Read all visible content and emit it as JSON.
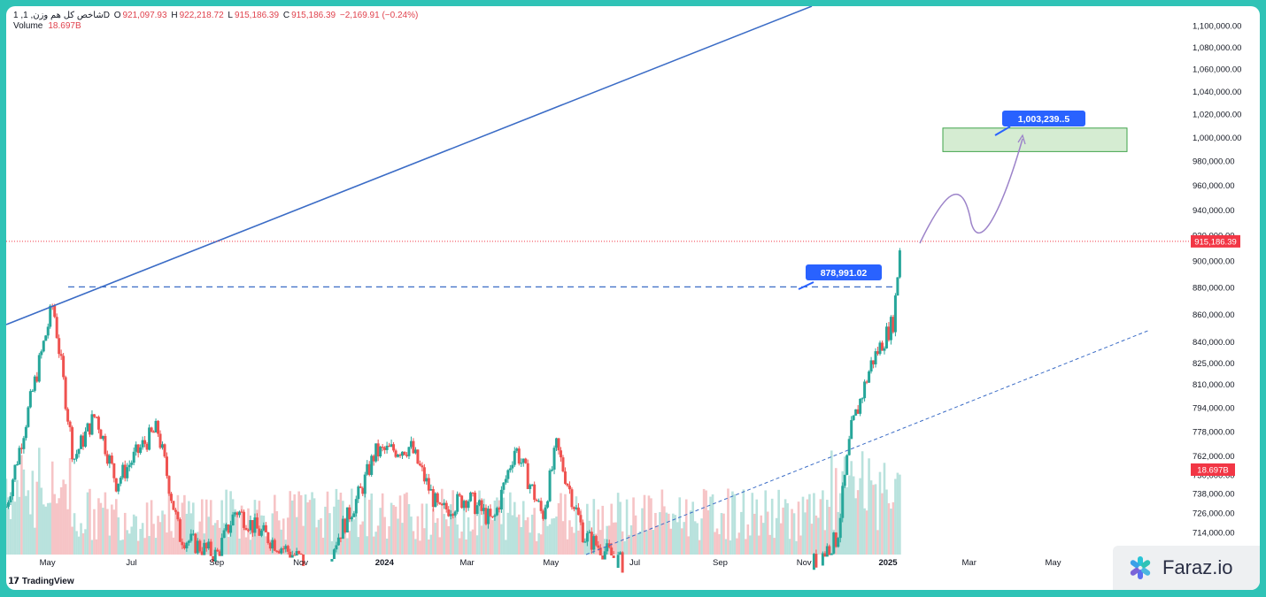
{
  "header": {
    "symbol": "1 ,شاخص کل هم وزن, 1D",
    "open_label": "O",
    "open": "921,097.93",
    "high_label": "H",
    "high": "922,218.72",
    "low_label": "L",
    "low": "915,186.39",
    "close_label": "C",
    "close": "915,186.39",
    "change": "−2,169.91 (−0.24%)",
    "volume_label": "Volume",
    "volume": "18.697B"
  },
  "branding": {
    "tradingview": "TradingView",
    "faraz": "Faraz.io"
  },
  "colors": {
    "up": "#26a69a",
    "down": "#ef5350",
    "trendline": "#3b6cc6",
    "price_line": "#f23645",
    "box_fill": "#d5ecd2",
    "box_stroke": "#3fa34a",
    "callout": "#2962ff",
    "projection": "#9c83c9"
  },
  "chart_data": {
    "type": "candlestick",
    "title": "",
    "x_ticks": [
      "May",
      "Jul",
      "Sep",
      "Nov",
      "2024",
      "Mar",
      "May",
      "Jul",
      "Sep",
      "Nov",
      "2025",
      "Mar",
      "May"
    ],
    "y_ticks": [
      "1,100,000.00",
      "1,080,000.00",
      "1,060,000.00",
      "1,040,000.00",
      "1,020,000.00",
      "1,000,000.00",
      "980,000.00",
      "960,000.00",
      "940,000.00",
      "920,000.00",
      "900,000.00",
      "880,000.00",
      "860,000.00",
      "840,000.00",
      "825,000.00",
      "810,000.00",
      "794,000.00",
      "778,000.00",
      "762,000.00",
      "750,000.00",
      "738,000.00",
      "726,000.00",
      "714,000.00"
    ],
    "y_scale": "log",
    "last_price": "915,186.39",
    "last_volume": "18.697B",
    "close_path": [
      [
        "2023-04",
        730000
      ],
      [
        "2023-05-05",
        868000
      ],
      [
        "2023-05-20",
        760000
      ],
      [
        "2023-06-05",
        790000
      ],
      [
        "2023-06-20",
        745000
      ],
      [
        "2023-07-10",
        770000
      ],
      [
        "2023-07-20",
        780000
      ],
      [
        "2023-08-05",
        712000
      ],
      [
        "2023-09-01",
        700000
      ],
      [
        "2023-09-15",
        728000
      ],
      [
        "2023-10-01",
        715000
      ],
      [
        "2023-11-15",
        690000
      ],
      [
        "2023-12-15",
        740000
      ],
      [
        "2023-12-25",
        764000
      ],
      [
        "2024-01-20",
        768000
      ],
      [
        "2024-02-10",
        726000
      ],
      [
        "2024-03-01",
        736000
      ],
      [
        "2024-03-20",
        720000
      ],
      [
        "2024-04-05",
        768000
      ],
      [
        "2024-04-25",
        724000
      ],
      [
        "2024-05-05",
        768000
      ],
      [
        "2024-05-25",
        712000
      ],
      [
        "2024-07-01",
        690000
      ],
      [
        "2024-09-01",
        690000
      ],
      [
        "2024-11-01",
        690000
      ],
      [
        "2024-11-25",
        710000
      ],
      [
        "2024-12-05",
        778000
      ],
      [
        "2024-12-20",
        825000
      ],
      [
        "2025-01-05",
        855000
      ],
      [
        "2025-01-10",
        915186
      ]
    ],
    "annotations": {
      "resistance_label": "878,991.02",
      "target_label": "1,003,239..5"
    }
  }
}
